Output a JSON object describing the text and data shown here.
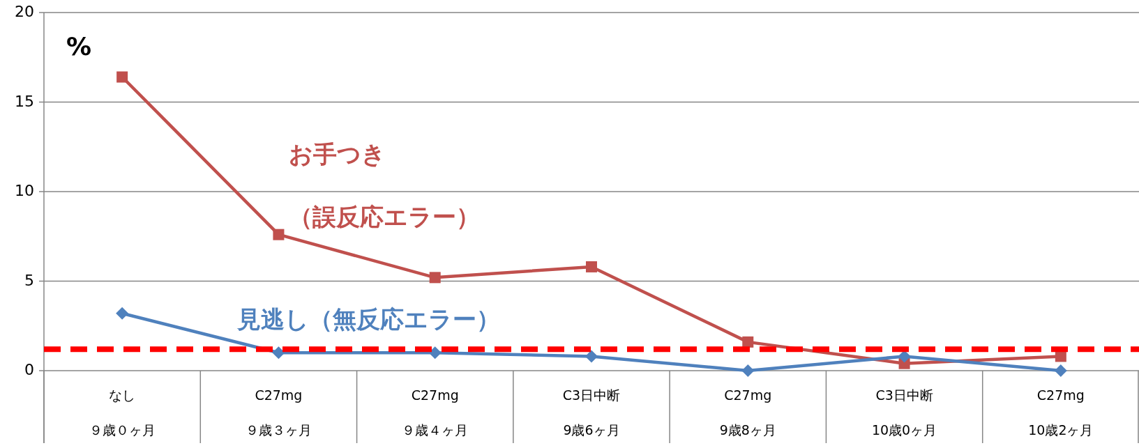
{
  "chart_data": {
    "type": "line",
    "ylabel": "%",
    "categories": [
      "なし９歳０ヶ月",
      "C27mg９歳３ヶ月",
      "C27mg９歳４ヶ月",
      "C3日中断9歳6ヶ月",
      "C27mg9歳8ヶ月",
      "C3日中断10歳0ヶ月",
      "C27mg10歳2ヶ月"
    ],
    "series": [
      {
        "name": "お手つき（誤反応エラー）",
        "color": "#c0504d",
        "marker": "square",
        "values": [
          16.4,
          7.6,
          5.2,
          5.8,
          1.6,
          0.4,
          0.8
        ]
      },
      {
        "name": "見逃し（無反応エラー）",
        "color": "#4f81bd",
        "marker": "diamond",
        "values": [
          3.2,
          1.0,
          1.0,
          0.8,
          0.0,
          0.8,
          0.0
        ]
      }
    ],
    "ylim": [
      0,
      20
    ],
    "yticks": [
      0,
      5,
      10,
      15,
      20
    ],
    "grid": "y",
    "ref_lines": [
      {
        "axis": "y",
        "value": 1.2,
        "color": "#ff0000",
        "line_style": "dashed"
      }
    ]
  }
}
